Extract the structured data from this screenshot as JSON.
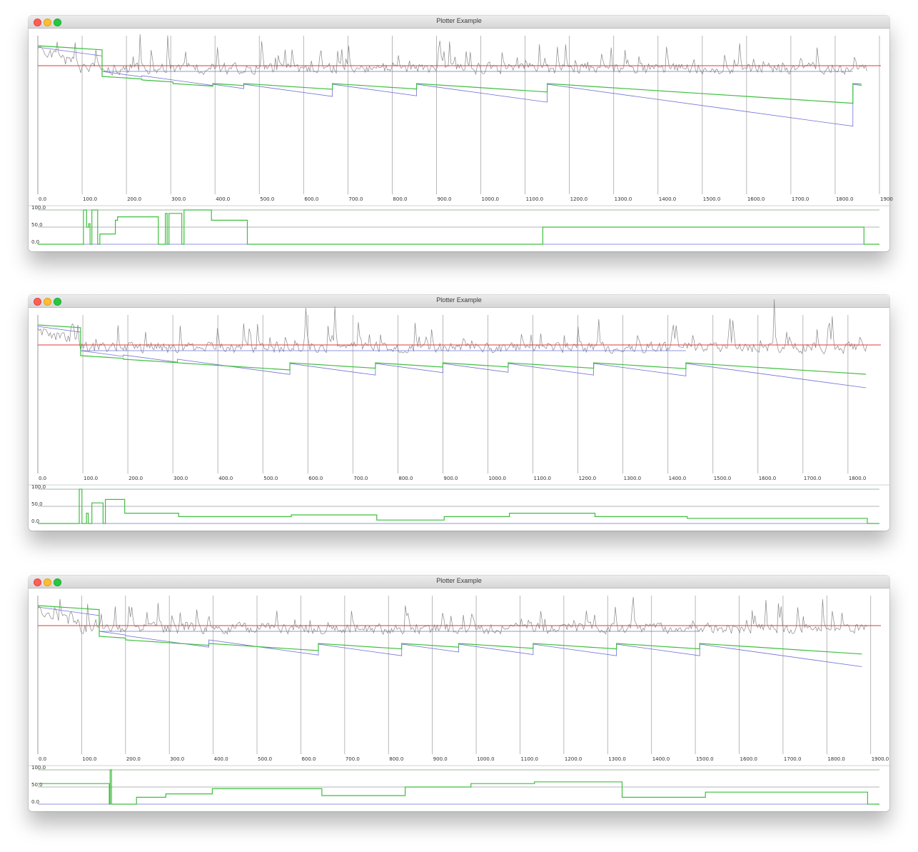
{
  "windows": [
    {
      "title": "Plotter Example",
      "chart_data": {
        "type": "line",
        "main": {
          "xlim": [
            0,
            1900
          ],
          "x_ticks": [
            "0.0",
            "100.0",
            "200.0",
            "300.0",
            "400.0",
            "500.0",
            "600.0",
            "700.0",
            "800.0",
            "900.0",
            "1000.0",
            "1100.0",
            "1200.0",
            "1300.0",
            "1400.0",
            "1500.0",
            "1600.0",
            "1700.0",
            "1800.0",
            "1900"
          ],
          "grid": "vertical",
          "reset_points": [
            0,
            145,
            235,
            305,
            395,
            465,
            665,
            855,
            1150,
            1840,
            1860
          ],
          "series": [
            {
              "color": "#888888",
              "kind": "noise",
              "seed": 11,
              "amp": 1.0
            },
            {
              "color": "#e23b3b",
              "kind": "flat"
            },
            {
              "color": "#6f6fd6",
              "kind": "sawtooth_blue"
            },
            {
              "color": "#3fbf3f",
              "kind": "sawtooth_green"
            }
          ]
        },
        "sub": {
          "ylim": [
            0,
            100
          ],
          "y_ticks": [
            "100.0",
            "50.0",
            "0.0"
          ],
          "steps": [
            [
              0,
              0
            ],
            [
              100,
              0
            ],
            [
              103,
              100
            ],
            [
              110,
              50
            ],
            [
              115,
              60
            ],
            [
              118,
              0
            ],
            [
              122,
              100
            ],
            [
              130,
              100
            ],
            [
              135,
              0
            ],
            [
              140,
              30
            ],
            [
              172,
              30
            ],
            [
              175,
              70
            ],
            [
              180,
              80
            ],
            [
              270,
              80
            ],
            [
              272,
              0
            ],
            [
              285,
              0
            ],
            [
              288,
              90
            ],
            [
              292,
              0
            ],
            [
              296,
              90
            ],
            [
              320,
              90
            ],
            [
              325,
              0
            ],
            [
              330,
              100
            ],
            [
              390,
              100
            ],
            [
              392,
              70
            ],
            [
              470,
              70
            ],
            [
              473,
              0
            ],
            [
              1135,
              0
            ],
            [
              1140,
              50
            ],
            [
              1860,
              50
            ],
            [
              1865,
              0
            ],
            [
              1900,
              0
            ]
          ]
        }
      }
    },
    {
      "title": "Plotter Example",
      "chart_data": {
        "type": "line",
        "main": {
          "xlim": [
            0,
            1870
          ],
          "x_ticks": [
            "0.0",
            "100.0",
            "200.0",
            "300.0",
            "400.0",
            "500.0",
            "600.0",
            "700.0",
            "800.0",
            "900.0",
            "1000.0",
            "1100.0",
            "1200.0",
            "1300.0",
            "1400.0",
            "1500.0",
            "1600.0",
            "1700.0",
            "1800.0"
          ],
          "grid": "vertical",
          "reset_points": [
            0,
            95,
            190,
            310,
            560,
            750,
            900,
            1045,
            1235,
            1440,
            1840
          ],
          "series": [
            {
              "color": "#888888",
              "kind": "noise",
              "seed": 23,
              "amp": 1.0
            },
            {
              "color": "#e23b3b",
              "kind": "flat"
            },
            {
              "color": "#6f6fd6",
              "kind": "sawtooth_blue"
            },
            {
              "color": "#3fbf3f",
              "kind": "sawtooth_green"
            }
          ]
        },
        "sub": {
          "ylim": [
            0,
            100
          ],
          "y_ticks": [
            "100.0",
            "50.0",
            "0.0"
          ],
          "steps": [
            [
              0,
              0
            ],
            [
              90,
              0
            ],
            [
              92,
              100
            ],
            [
              98,
              0
            ],
            [
              105,
              0
            ],
            [
              108,
              30
            ],
            [
              112,
              0
            ],
            [
              120,
              60
            ],
            [
              140,
              60
            ],
            [
              145,
              0
            ],
            [
              150,
              70
            ],
            [
              190,
              70
            ],
            [
              193,
              30
            ],
            [
              310,
              30
            ],
            [
              313,
              20
            ],
            [
              560,
              20
            ],
            [
              563,
              25
            ],
            [
              750,
              25
            ],
            [
              753,
              10
            ],
            [
              900,
              10
            ],
            [
              903,
              20
            ],
            [
              1045,
              20
            ],
            [
              1048,
              30
            ],
            [
              1235,
              30
            ],
            [
              1238,
              20
            ],
            [
              1440,
              20
            ],
            [
              1443,
              15
            ],
            [
              1840,
              15
            ],
            [
              1843,
              0
            ],
            [
              1870,
              0
            ]
          ]
        }
      }
    },
    {
      "title": "Plotter Example",
      "chart_data": {
        "type": "line",
        "main": {
          "xlim": [
            0,
            1920
          ],
          "x_ticks": [
            "0.0",
            "100.0",
            "200.0",
            "300.0",
            "400.0",
            "500.0",
            "600.0",
            "700.0",
            "800.0",
            "900.0",
            "1000.0",
            "1100.0",
            "1200.0",
            "1300.0",
            "1400.0",
            "1500.0",
            "1600.0",
            "1700.0",
            "1800.0",
            "1900.0"
          ],
          "grid": "vertical",
          "reset_points": [
            0,
            140,
            200,
            390,
            640,
            830,
            960,
            1130,
            1320,
            1510,
            1880
          ],
          "series": [
            {
              "color": "#888888",
              "kind": "noise",
              "seed": 37,
              "amp": 1.0
            },
            {
              "color": "#e23b3b",
              "kind": "flat"
            },
            {
              "color": "#6f6fd6",
              "kind": "sawtooth_blue"
            },
            {
              "color": "#3fbf3f",
              "kind": "sawtooth_green"
            }
          ]
        },
        "sub": {
          "ylim": [
            0,
            100
          ],
          "y_ticks": [
            "100.0",
            "50.0",
            "0.0"
          ],
          "steps": [
            [
              0,
              60
            ],
            [
              160,
              60
            ],
            [
              163,
              0
            ],
            [
              165,
              100
            ],
            [
              168,
              0
            ],
            [
              220,
              0
            ],
            [
              225,
              20
            ],
            [
              290,
              20
            ],
            [
              292,
              30
            ],
            [
              395,
              30
            ],
            [
              398,
              45
            ],
            [
              645,
              45
            ],
            [
              648,
              25
            ],
            [
              835,
              25
            ],
            [
              838,
              50
            ],
            [
              985,
              50
            ],
            [
              988,
              60
            ],
            [
              1130,
              60
            ],
            [
              1133,
              65
            ],
            [
              1330,
              65
            ],
            [
              1333,
              20
            ],
            [
              1520,
              20
            ],
            [
              1523,
              35
            ],
            [
              1890,
              35
            ],
            [
              1893,
              0
            ],
            [
              1920,
              0
            ]
          ]
        }
      }
    }
  ]
}
